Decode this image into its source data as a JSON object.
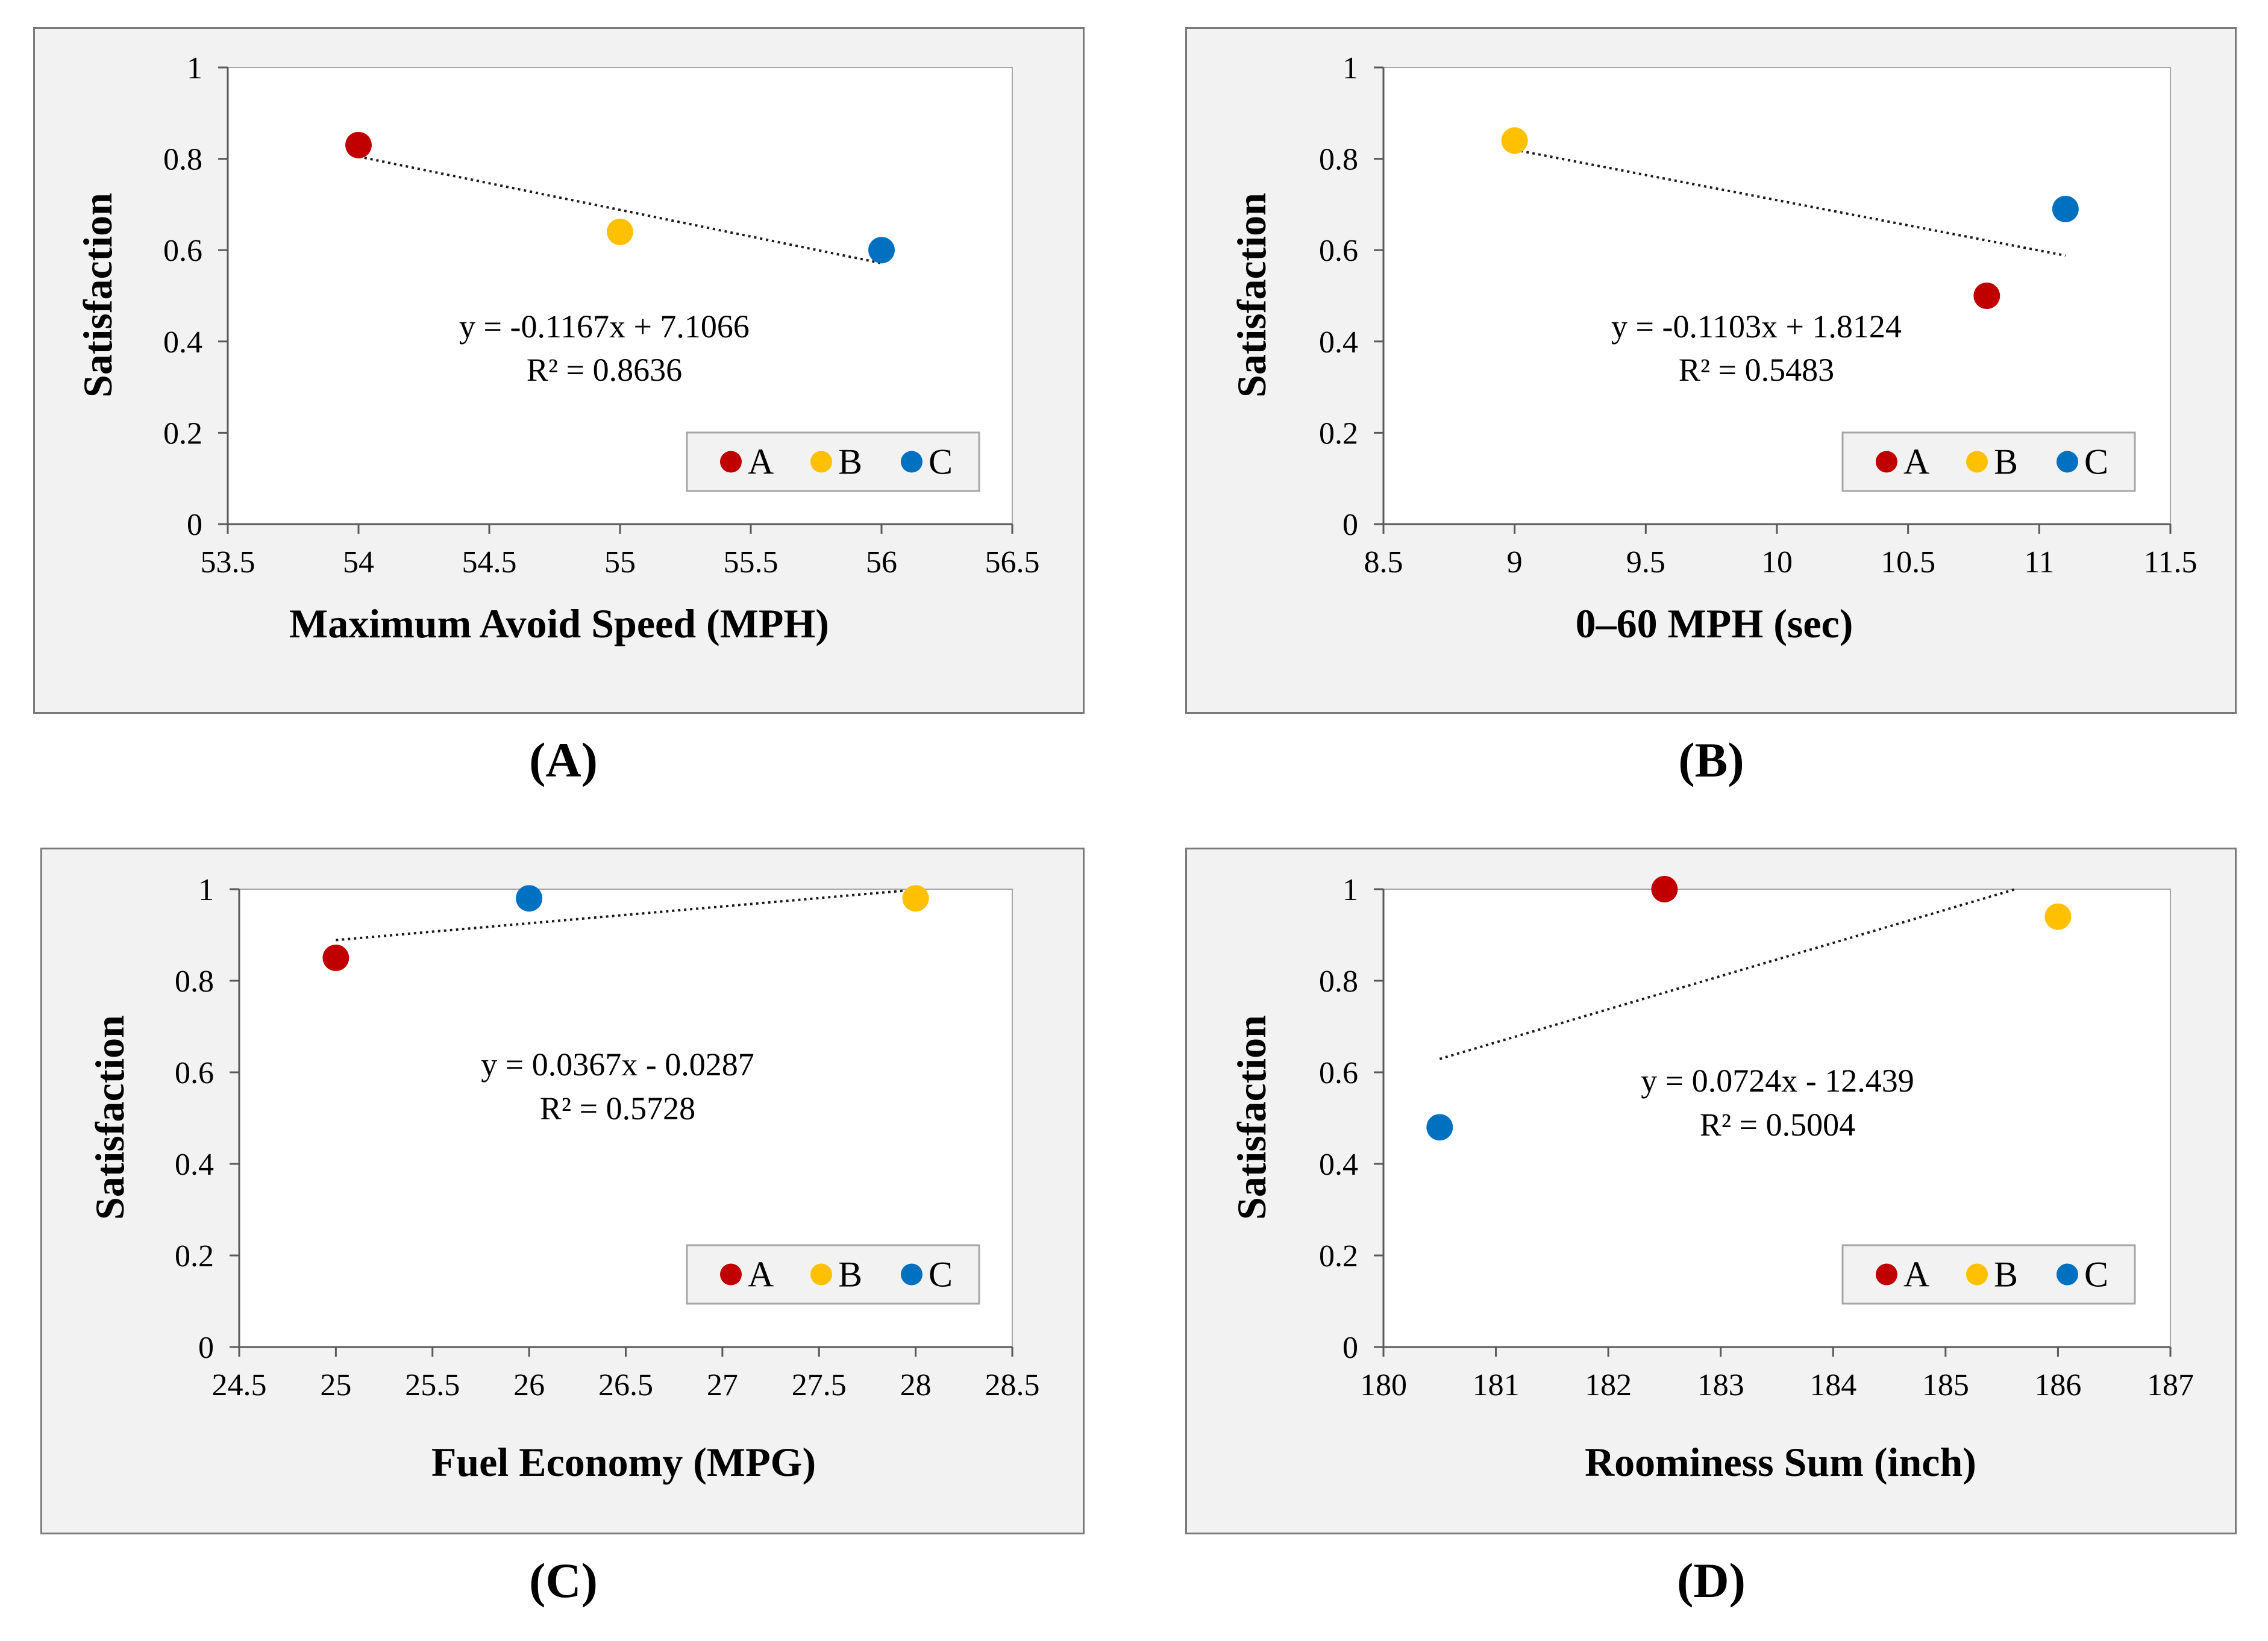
{
  "chart_data": [
    {
      "type": "scatter",
      "panel_label": "(A)",
      "xlabel": "Maximum Avoid Speed (MPH)",
      "ylabel": "Satisfaction",
      "xlim": [
        53.5,
        56.5
      ],
      "ylim": [
        0,
        1
      ],
      "x_ticks": [
        "53.5",
        "54",
        "54.5",
        "55",
        "55.5",
        "56",
        "56.5"
      ],
      "y_ticks": [
        "0",
        "0.2",
        "0.4",
        "0.6",
        "0.8",
        "1"
      ],
      "series": [
        {
          "name": "A",
          "color": "#c00000",
          "x": 54,
          "y": 0.83
        },
        {
          "name": "B",
          "color": "#ffc000",
          "x": 55,
          "y": 0.64
        },
        {
          "name": "C",
          "color": "#0070c0",
          "x": 56,
          "y": 0.6
        }
      ],
      "trendline": {
        "slope": -0.1167,
        "intercept": 7.1066,
        "x_range": [
          54,
          56
        ]
      },
      "equation": "y = -0.1167x + 7.1066",
      "r_squared": "R² = 0.8636",
      "legend_position": "bottom-right",
      "grid": false
    },
    {
      "type": "scatter",
      "panel_label": "(B)",
      "xlabel": "0–60 MPH (sec)",
      "ylabel": "Satisfaction",
      "xlim": [
        8.5,
        11.5
      ],
      "ylim": [
        0,
        1
      ],
      "x_ticks": [
        "8.5",
        "9",
        "9.5",
        "10",
        "10.5",
        "11",
        "11.5"
      ],
      "y_ticks": [
        "0",
        "0.2",
        "0.4",
        "0.6",
        "0.8",
        "1"
      ],
      "series": [
        {
          "name": "A",
          "color": "#c00000",
          "x": 10.8,
          "y": 0.5
        },
        {
          "name": "B",
          "color": "#ffc000",
          "x": 9.0,
          "y": 0.84
        },
        {
          "name": "C",
          "color": "#0070c0",
          "x": 11.1,
          "y": 0.69
        }
      ],
      "trendline": {
        "slope": -0.1103,
        "intercept": 1.8124,
        "x_range": [
          9,
          11.1
        ]
      },
      "equation": "y = -0.1103x + 1.8124",
      "r_squared": "R² = 0.5483",
      "legend_position": "bottom-right",
      "grid": false
    },
    {
      "type": "scatter",
      "panel_label": "(C)",
      "xlabel": "Fuel Economy (MPG)",
      "ylabel": "Satisfaction",
      "xlim": [
        24.5,
        28.5
      ],
      "ylim": [
        0,
        1
      ],
      "x_ticks": [
        "24.5",
        "25",
        "25.5",
        "26",
        "26.5",
        "27",
        "27.5",
        "28",
        "28.5"
      ],
      "y_ticks": [
        "0",
        "0.2",
        "0.4",
        "0.6",
        "0.8",
        "1"
      ],
      "series": [
        {
          "name": "A",
          "color": "#c00000",
          "x": 25,
          "y": 0.85
        },
        {
          "name": "B",
          "color": "#ffc000",
          "x": 28,
          "y": 0.98
        },
        {
          "name": "C",
          "color": "#0070c0",
          "x": 26,
          "y": 0.98
        }
      ],
      "trendline": {
        "slope": 0.0367,
        "intercept": -0.0287,
        "x_range": [
          25,
          28
        ]
      },
      "equation": "y = 0.0367x - 0.0287",
      "r_squared": "R² = 0.5728",
      "legend_position": "bottom-right",
      "grid": false
    },
    {
      "type": "scatter",
      "panel_label": "(D)",
      "xlabel": "Roominess Sum (inch)",
      "ylabel": "Satisfaction",
      "xlim": [
        180,
        187
      ],
      "ylim": [
        0,
        1
      ],
      "x_ticks": [
        "180",
        "181",
        "182",
        "183",
        "184",
        "185",
        "186",
        "187"
      ],
      "y_ticks": [
        "0",
        "0.2",
        "0.4",
        "0.6",
        "0.8",
        "1"
      ],
      "series": [
        {
          "name": "A",
          "color": "#c00000",
          "x": 182.5,
          "y": 1.0
        },
        {
          "name": "B",
          "color": "#ffc000",
          "x": 186,
          "y": 0.94
        },
        {
          "name": "C",
          "color": "#0070c0",
          "x": 180.5,
          "y": 0.48
        }
      ],
      "trendline": {
        "slope": 0.0724,
        "intercept": -12.439,
        "x_range": [
          180.5,
          186
        ]
      },
      "equation": "y = 0.0724x - 12.439",
      "r_squared": "R² = 0.5004",
      "legend_position": "bottom-right",
      "grid": false
    }
  ]
}
